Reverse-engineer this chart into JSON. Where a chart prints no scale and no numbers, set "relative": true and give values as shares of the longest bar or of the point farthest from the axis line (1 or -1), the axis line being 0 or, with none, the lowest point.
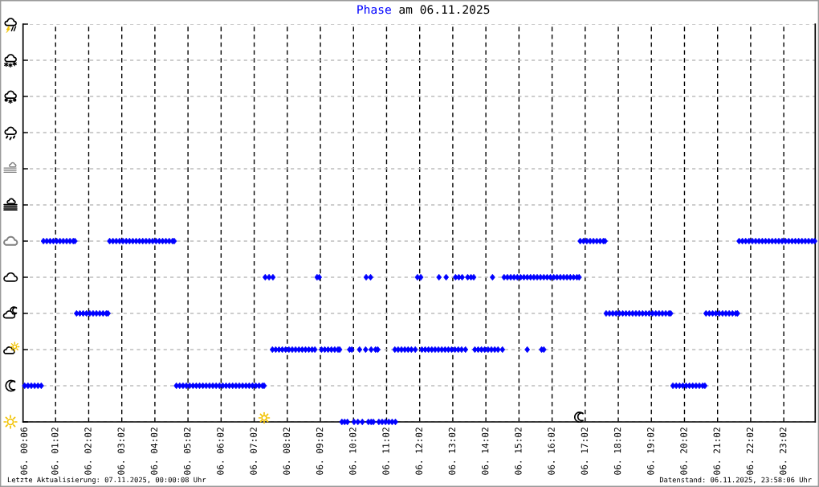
{
  "chart_data": {
    "type": "scatter",
    "title": "Phase am 06.11.2025",
    "relative": true,
    "marker": "diamond",
    "grid": true,
    "color": "#0000ff",
    "xlim": [
      "2025-11-06T00:03",
      "2025-11-06T23:59"
    ],
    "xticks": [
      {
        "value": "2025-11-06T00:06",
        "label": "06. 00:06"
      },
      {
        "value": "2025-11-06T01:02",
        "label": "06. 01:02"
      },
      {
        "value": "2025-11-06T02:02",
        "label": "06. 02:02"
      },
      {
        "value": "2025-11-06T03:02",
        "label": "06. 03:02"
      },
      {
        "value": "2025-11-06T04:02",
        "label": "06. 04:02"
      },
      {
        "value": "2025-11-06T05:02",
        "label": "06. 05:02"
      },
      {
        "value": "2025-11-06T06:02",
        "label": "06. 06:02"
      },
      {
        "value": "2025-11-06T07:02",
        "label": "06. 07:02"
      },
      {
        "value": "2025-11-06T08:02",
        "label": "06. 08:02"
      },
      {
        "value": "2025-11-06T09:02",
        "label": "06. 09:02"
      },
      {
        "value": "2025-11-06T10:02",
        "label": "06. 10:02"
      },
      {
        "value": "2025-11-06T11:02",
        "label": "06. 11:02"
      },
      {
        "value": "2025-11-06T12:02",
        "label": "06. 12:02"
      },
      {
        "value": "2025-11-06T13:02",
        "label": "06. 13:02"
      },
      {
        "value": "2025-11-06T14:02",
        "label": "06. 14:02"
      },
      {
        "value": "2025-11-06T15:02",
        "label": "06. 15:02"
      },
      {
        "value": "2025-11-06T16:02",
        "label": "06. 16:02"
      },
      {
        "value": "2025-11-06T17:02",
        "label": "06. 17:02"
      },
      {
        "value": "2025-11-06T18:02",
        "label": "06. 18:02"
      },
      {
        "value": "2025-11-06T19:02",
        "label": "06. 19:02"
      },
      {
        "value": "2025-11-06T20:02",
        "label": "06. 20:02"
      },
      {
        "value": "2025-11-06T21:02",
        "label": "06. 21:02"
      },
      {
        "value": "2025-11-06T22:02",
        "label": "06. 22:02"
      },
      {
        "value": "2025-11-06T23:02",
        "label": "06. 23:02"
      }
    ],
    "x": [
      "2025-11-06T09:41",
      "2025-11-06T09:46",
      "2025-11-06T09:51",
      "2025-11-06T10:03",
      "2025-11-06T10:10",
      "2025-11-06T10:18",
      "2025-11-06T10:29",
      "2025-11-06T10:34",
      "2025-11-06T10:38",
      "2025-11-06T10:48",
      "2025-11-06T10:54",
      "2025-11-06T11:00",
      "2025-11-06T11:06",
      "2025-11-06T11:12",
      "2025-11-06T11:18",
      "2025-11-06T00:06",
      "2025-11-06T00:12",
      "2025-11-06T00:18",
      "2025-11-06T00:24",
      "2025-11-06T00:30",
      "2025-11-06T00:36",
      "2025-11-06T04:41",
      "2025-11-06T04:47",
      "2025-11-06T04:53",
      "2025-11-06T04:59",
      "2025-11-06T05:05",
      "2025-11-06T05:11",
      "2025-11-06T05:17",
      "2025-11-06T05:23",
      "2025-11-06T05:29",
      "2025-11-06T05:35",
      "2025-11-06T05:41",
      "2025-11-06T05:47",
      "2025-11-06T05:53",
      "2025-11-06T05:59",
      "2025-11-06T06:05",
      "2025-11-06T06:11",
      "2025-11-06T06:17",
      "2025-11-06T06:23",
      "2025-11-06T06:29",
      "2025-11-06T06:35",
      "2025-11-06T06:41",
      "2025-11-06T06:47",
      "2025-11-06T06:53",
      "2025-11-06T06:59",
      "2025-11-06T07:05",
      "2025-11-06T07:11",
      "2025-11-06T07:17",
      "2025-11-06T07:20",
      "2025-11-06T19:41",
      "2025-11-06T19:47",
      "2025-11-06T19:53",
      "2025-11-06T19:59",
      "2025-11-06T20:05",
      "2025-11-06T20:11",
      "2025-11-06T20:17",
      "2025-11-06T20:23",
      "2025-11-06T20:29",
      "2025-11-06T20:35",
      "2025-11-06T20:39",
      "2025-11-06T07:35",
      "2025-11-06T07:41",
      "2025-11-06T07:47",
      "2025-11-06T07:53",
      "2025-11-06T07:59",
      "2025-11-06T08:05",
      "2025-11-06T08:11",
      "2025-11-06T08:17",
      "2025-11-06T08:23",
      "2025-11-06T08:29",
      "2025-11-06T08:35",
      "2025-11-06T08:41",
      "2025-11-06T08:47",
      "2025-11-06T08:52",
      "2025-11-06T09:04",
      "2025-11-06T09:10",
      "2025-11-06T09:16",
      "2025-11-06T09:22",
      "2025-11-06T09:28",
      "2025-11-06T09:34",
      "2025-11-06T09:37",
      "2025-11-06T09:55",
      "2025-11-06T09:59",
      "2025-11-06T10:13",
      "2025-11-06T10:24",
      "2025-11-06T10:34",
      "2025-11-06T10:42",
      "2025-11-06T10:46",
      "2025-11-06T11:17",
      "2025-11-06T11:23",
      "2025-11-06T11:29",
      "2025-11-06T11:35",
      "2025-11-06T11:41",
      "2025-11-06T11:47",
      "2025-11-06T11:54",
      "2025-11-06T12:06",
      "2025-11-06T12:12",
      "2025-11-06T12:18",
      "2025-11-06T12:24",
      "2025-11-06T12:30",
      "2025-11-06T12:36",
      "2025-11-06T12:42",
      "2025-11-06T12:48",
      "2025-11-06T12:54",
      "2025-11-06T13:00",
      "2025-11-06T13:06",
      "2025-11-06T13:12",
      "2025-11-06T13:18",
      "2025-11-06T13:25",
      "2025-11-06T13:42",
      "2025-11-06T13:48",
      "2025-11-06T13:54",
      "2025-11-06T14:00",
      "2025-11-06T14:06",
      "2025-11-06T14:12",
      "2025-11-06T14:18",
      "2025-11-06T14:24",
      "2025-11-06T14:32",
      "2025-11-06T15:17",
      "2025-11-06T15:43",
      "2025-11-06T15:47",
      "2025-11-06T01:40",
      "2025-11-06T01:46",
      "2025-11-06T01:52",
      "2025-11-06T01:58",
      "2025-11-06T02:04",
      "2025-11-06T02:10",
      "2025-11-06T02:16",
      "2025-11-06T02:22",
      "2025-11-06T02:28",
      "2025-11-06T02:34",
      "2025-11-06T02:37",
      "2025-11-06T17:40",
      "2025-11-06T17:46",
      "2025-11-06T17:52",
      "2025-11-06T17:58",
      "2025-11-06T18:04",
      "2025-11-06T18:10",
      "2025-11-06T18:16",
      "2025-11-06T18:22",
      "2025-11-06T18:28",
      "2025-11-06T18:34",
      "2025-11-06T18:40",
      "2025-11-06T18:46",
      "2025-11-06T18:52",
      "2025-11-06T18:58",
      "2025-11-06T19:04",
      "2025-11-06T19:10",
      "2025-11-06T19:16",
      "2025-11-06T19:22",
      "2025-11-06T19:28",
      "2025-11-06T19:34",
      "2025-11-06T19:37",
      "2025-11-06T20:41",
      "2025-11-06T20:47",
      "2025-11-06T20:53",
      "2025-11-06T20:59",
      "2025-11-06T21:05",
      "2025-11-06T21:11",
      "2025-11-06T21:17",
      "2025-11-06T21:23",
      "2025-11-06T21:29",
      "2025-11-06T21:35",
      "2025-11-06T21:38",
      "2025-11-06T07:22",
      "2025-11-06T07:29",
      "2025-11-06T07:36",
      "2025-11-06T08:56",
      "2025-11-06T09:00",
      "2025-11-06T10:25",
      "2025-11-06T10:33",
      "2025-11-06T11:58",
      "2025-11-06T12:04",
      "2025-11-06T12:37",
      "2025-11-06T12:50",
      "2025-11-06T13:07",
      "2025-11-06T13:13",
      "2025-11-06T13:19",
      "2025-11-06T13:29",
      "2025-11-06T13:35",
      "2025-11-06T13:40",
      "2025-11-06T14:14",
      "2025-11-06T14:35",
      "2025-11-06T14:41",
      "2025-11-06T14:47",
      "2025-11-06T14:53",
      "2025-11-06T14:59",
      "2025-11-06T15:05",
      "2025-11-06T15:11",
      "2025-11-06T15:17",
      "2025-11-06T15:23",
      "2025-11-06T15:29",
      "2025-11-06T15:35",
      "2025-11-06T15:41",
      "2025-11-06T15:47",
      "2025-11-06T15:53",
      "2025-11-06T15:59",
      "2025-11-06T16:05",
      "2025-11-06T16:11",
      "2025-11-06T16:17",
      "2025-11-06T16:23",
      "2025-11-06T16:29",
      "2025-11-06T16:35",
      "2025-11-06T16:41",
      "2025-11-06T16:47",
      "2025-11-06T16:51",
      "2025-11-06T00:40",
      "2025-11-06T00:46",
      "2025-11-06T00:52",
      "2025-11-06T00:58",
      "2025-11-06T01:04",
      "2025-11-06T01:10",
      "2025-11-06T01:16",
      "2025-11-06T01:22",
      "2025-11-06T01:28",
      "2025-11-06T01:34",
      "2025-11-06T01:37",
      "2025-11-06T02:40",
      "2025-11-06T02:46",
      "2025-11-06T02:52",
      "2025-11-06T02:58",
      "2025-11-06T03:04",
      "2025-11-06T03:10",
      "2025-11-06T03:16",
      "2025-11-06T03:22",
      "2025-11-06T03:28",
      "2025-11-06T03:34",
      "2025-11-06T03:40",
      "2025-11-06T03:46",
      "2025-11-06T03:52",
      "2025-11-06T03:58",
      "2025-11-06T04:04",
      "2025-11-06T04:10",
      "2025-11-06T04:16",
      "2025-11-06T04:22",
      "2025-11-06T04:28",
      "2025-11-06T04:34",
      "2025-11-06T04:37",
      "2025-11-06T16:53",
      "2025-11-06T16:59",
      "2025-11-06T17:05",
      "2025-11-06T17:11",
      "2025-11-06T17:17",
      "2025-11-06T17:23",
      "2025-11-06T17:29",
      "2025-11-06T17:35",
      "2025-11-06T17:38",
      "2025-11-06T21:41",
      "2025-11-06T21:47",
      "2025-11-06T21:53",
      "2025-11-06T21:59",
      "2025-11-06T22:05",
      "2025-11-06T22:11",
      "2025-11-06T22:17",
      "2025-11-06T22:23",
      "2025-11-06T22:29",
      "2025-11-06T22:35",
      "2025-11-06T22:41",
      "2025-11-06T22:47",
      "2025-11-06T22:53",
      "2025-11-06T22:59",
      "2025-11-06T23:05",
      "2025-11-06T23:11",
      "2025-11-06T23:17",
      "2025-11-06T23:23",
      "2025-11-06T23:29",
      "2025-11-06T23:35",
      "2025-11-06T23:41",
      "2025-11-06T23:47",
      "2025-11-06T23:53",
      "2025-11-06T23:58"
    ],
    "values": [
      0,
      0,
      0,
      0,
      0,
      0,
      0,
      0,
      0,
      0,
      0,
      0,
      0,
      0,
      0,
      0.2,
      0.2,
      0.2,
      0.2,
      0.2,
      0.2,
      0.2,
      0.2,
      0.2,
      0.2,
      0.2,
      0.2,
      0.2,
      0.2,
      0.2,
      0.2,
      0.2,
      0.2,
      0.2,
      0.2,
      0.2,
      0.2,
      0.2,
      0.2,
      0.2,
      0.2,
      0.2,
      0.2,
      0.2,
      0.2,
      0.2,
      0.2,
      0.2,
      0.2,
      0.2,
      0.2,
      0.2,
      0.2,
      0.2,
      0.2,
      0.2,
      0.2,
      0.2,
      0.2,
      0.2,
      0.4,
      0.4,
      0.4,
      0.4,
      0.4,
      0.4,
      0.4,
      0.4,
      0.4,
      0.4,
      0.4,
      0.4,
      0.4,
      0.4,
      0.4,
      0.4,
      0.4,
      0.4,
      0.4,
      0.4,
      0.4,
      0.4,
      0.4,
      0.4,
      0.4,
      0.4,
      0.4,
      0.4,
      0.4,
      0.4,
      0.4,
      0.4,
      0.4,
      0.4,
      0.4,
      0.4,
      0.4,
      0.4,
      0.4,
      0.4,
      0.4,
      0.4,
      0.4,
      0.4,
      0.4,
      0.4,
      0.4,
      0.4,
      0.4,
      0.4,
      0.4,
      0.4,
      0.4,
      0.4,
      0.4,
      0.4,
      0.4,
      0.4,
      0.4,
      0.4,
      0.4,
      0.6,
      0.6,
      0.6,
      0.6,
      0.6,
      0.6,
      0.6,
      0.6,
      0.6,
      0.6,
      0.6,
      0.6,
      0.6,
      0.6,
      0.6,
      0.6,
      0.6,
      0.6,
      0.6,
      0.6,
      0.6,
      0.6,
      0.6,
      0.6,
      0.6,
      0.6,
      0.6,
      0.6,
      0.6,
      0.6,
      0.6,
      0.6,
      0.6,
      0.6,
      0.6,
      0.6,
      0.6,
      0.6,
      0.6,
      0.6,
      0.6,
      0.6,
      0.6,
      0.8,
      0.8,
      0.8,
      0.8,
      0.8,
      0.8,
      0.8,
      0.8,
      0.8,
      0.8,
      0.8,
      0.8,
      0.8,
      0.8,
      0.8,
      0.8,
      0.8,
      0.8,
      0.8,
      0.8,
      0.8,
      0.8,
      0.8,
      0.8,
      0.8,
      0.8,
      0.8,
      0.8,
      0.8,
      0.8,
      0.8,
      0.8,
      0.8,
      0.8,
      0.8,
      0.8,
      0.8,
      0.8,
      0.8,
      0.8,
      0.8,
      0.8,
      1,
      1,
      1,
      1,
      1,
      1,
      1,
      1,
      1,
      1,
      1,
      1,
      1,
      1,
      1,
      1,
      1,
      1,
      1,
      1,
      1,
      1,
      1,
      1,
      1,
      1,
      1,
      1,
      1,
      1,
      1,
      1,
      1,
      1,
      1,
      1,
      1,
      1,
      1,
      1,
      1,
      1,
      1,
      1,
      1,
      1,
      1,
      1,
      1,
      1,
      1,
      1,
      1,
      1,
      1,
      1,
      1,
      1,
      1,
      1,
      1,
      1,
      1,
      1,
      1
    ],
    "annotations": [
      "Letzte Aktualisierung: 07.11.2025, 00:00:08 Uhr",
      "Datenstand: 06.11.2025, 23:58:06 Uhr"
    ]
  }
}
